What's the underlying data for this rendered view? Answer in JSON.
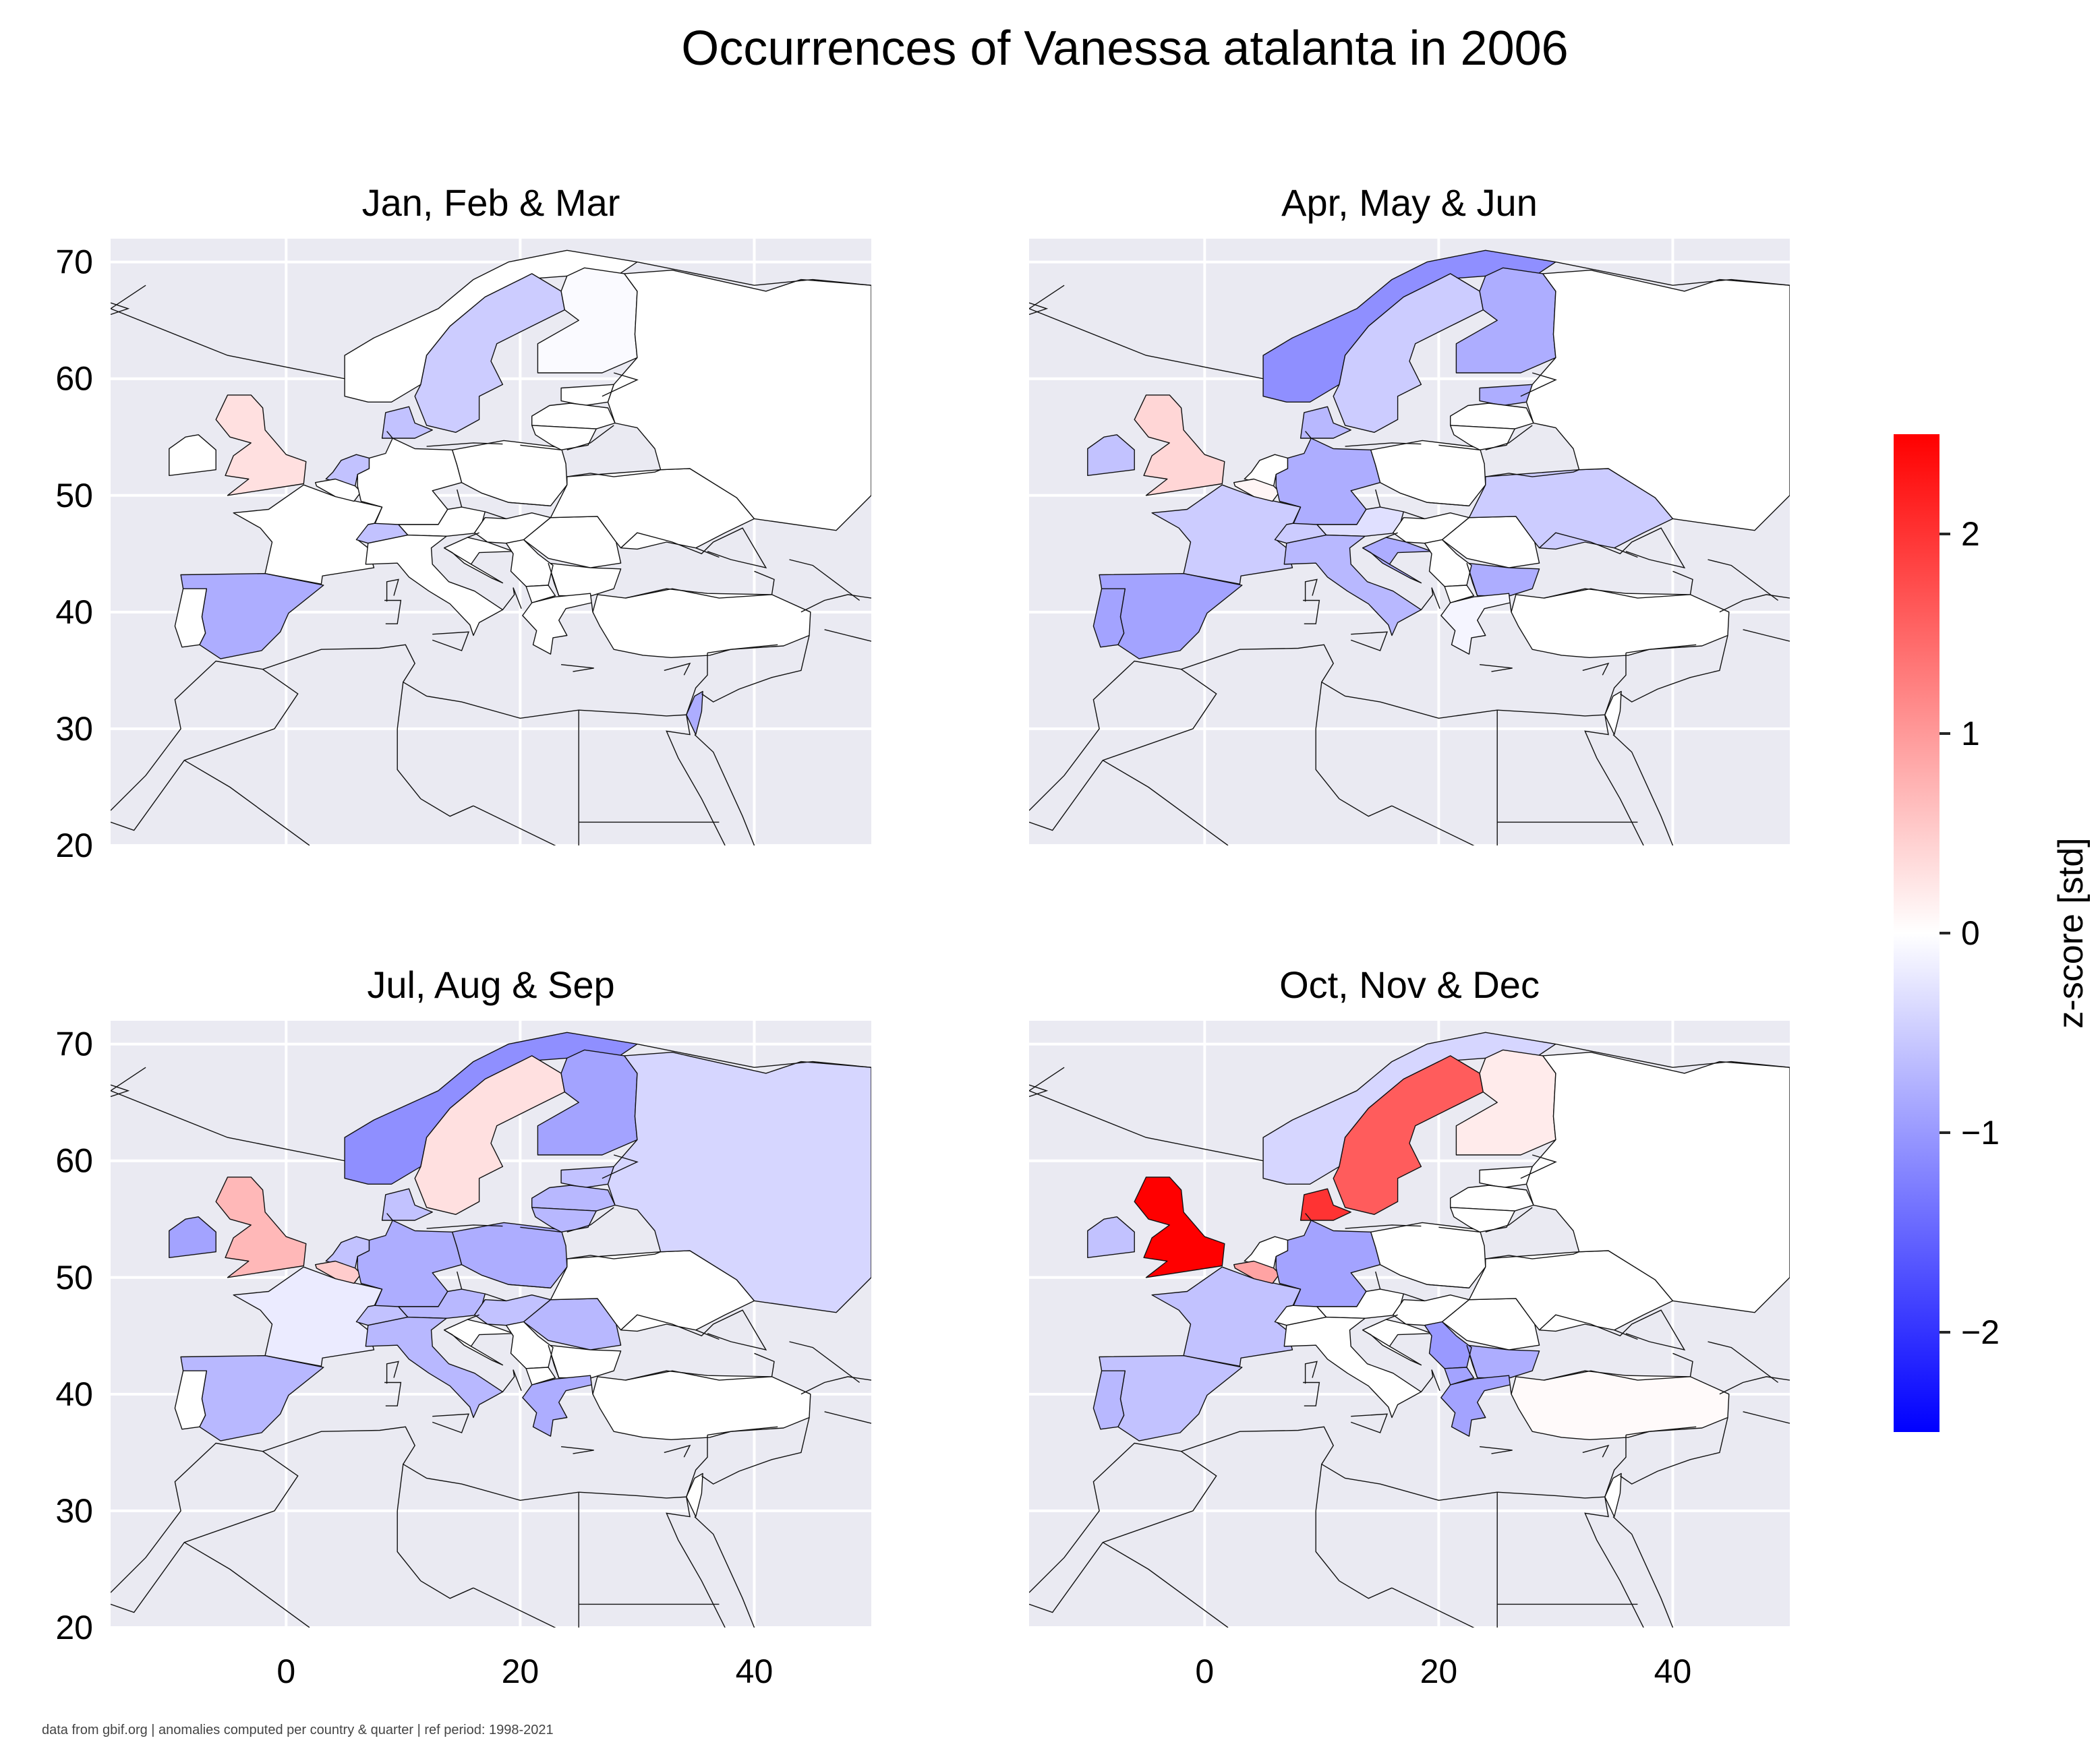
{
  "chart_data": {
    "type": "choropleth-map-grid",
    "title": "Occurrences of Vanessa atalanta in 2006",
    "footnote": "data from gbif.org | anomalies computed per country & quarter | ref period: 1998-2021",
    "xlim": [
      -15,
      50
    ],
    "ylim": [
      20,
      72
    ],
    "xticks": [
      0,
      20,
      40
    ],
    "yticks": [
      20,
      30,
      40,
      50,
      60,
      70
    ],
    "grid": true,
    "colorbar": {
      "label": "z-score [std]",
      "range": [
        -2.5,
        2.5
      ],
      "ticks": [
        -2,
        -1,
        0,
        1,
        2
      ],
      "tick_labels": [
        "−2",
        "−1",
        "0",
        "1",
        "2"
      ],
      "colormap": "bwr",
      "colors": {
        "low": "#0000ff",
        "mid": "#ffffff",
        "high": "#ff0000"
      }
    },
    "panels": [
      {
        "name": "Jan, Feb & Mar",
        "values": {
          "United Kingdom": 0.3,
          "France": 0.0,
          "Spain": -0.8,
          "Sweden": -0.5,
          "Finland": -0.05,
          "Netherlands": -0.6,
          "Denmark": -0.6,
          "Switzerland": -0.6,
          "Israel": -0.8
        }
      },
      {
        "name": "Apr, May & Jun",
        "values": {
          "United Kingdom": 0.4,
          "Ireland": -0.6,
          "France": -0.5,
          "Spain": -0.9,
          "Portugal": -0.9,
          "Norway": -1.1,
          "Sweden": -0.5,
          "Finland": -0.8,
          "Germany": -0.8,
          "Belgium": 0.1,
          "Switzerland": -0.5,
          "Austria": -0.3,
          "Italy": -0.7,
          "Ukraine": -0.5,
          "Bulgaria": -0.8,
          "Greece": -0.1,
          "Croatia": -0.8,
          "Estonia": -0.8,
          "Denmark": -0.7
        }
      },
      {
        "name": "Jul, Aug & Sep",
        "values": {
          "United Kingdom": 0.7,
          "Ireland": -0.9,
          "France": -0.2,
          "Spain": -0.7,
          "Norway": -1.1,
          "Sweden": 0.3,
          "Finland": -0.9,
          "Russia": -0.4,
          "Germany": -0.8,
          "Belgium": 0.5,
          "Netherlands": -0.6,
          "Poland": -0.8,
          "Italy": -0.7,
          "Switzerland": -0.6,
          "Austria": -0.7,
          "Hungary": -0.6,
          "Romania": -0.7,
          "Greece": -0.8,
          "Denmark": -0.6,
          "Latvia": -0.7,
          "Lithuania": -0.7,
          "Estonia": -0.6
        }
      },
      {
        "name": "Oct, Nov & Dec",
        "values": {
          "United Kingdom": 2.5,
          "Ireland": -0.6,
          "France": -0.6,
          "Spain": -0.6,
          "Portugal": -0.7,
          "Norway": -0.4,
          "Sweden": 1.6,
          "Finland": 0.2,
          "Denmark": 2.0,
          "Germany": -0.9,
          "Belgium": 0.9,
          "Turkey": 0.05,
          "Serbia": -1.0,
          "Bulgaria": -0.8,
          "Greece": -0.9,
          "Macedonia": -0.9
        }
      }
    ]
  }
}
